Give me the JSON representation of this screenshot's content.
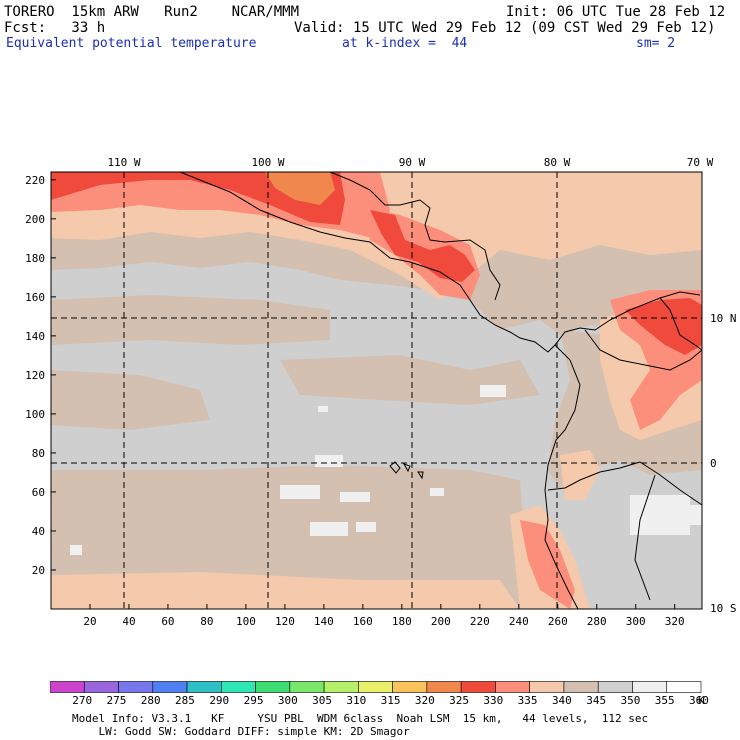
{
  "header": {
    "line1_left": "TORERO  15km ARW   Run2    NCAR/MMM",
    "line1_right": "Init: 06 UTC Tue 28 Feb 12",
    "line2_left": "Fcst:   33 h",
    "line2_right": "Valid: 15 UTC Wed 29 Feb 12 (09 CST Wed 29 Feb 12)",
    "line3_field": "Equivalent potential temperature",
    "line3_level": "at k-index =  44",
    "line3_sm": "sm= 2"
  },
  "map": {
    "top_ticks": [
      "110 W",
      "100 W",
      "90 W",
      "80 W",
      "70 W"
    ],
    "right_ticks": [
      "10 N",
      "0",
      "10 S"
    ],
    "x_ticks": [
      "20",
      "40",
      "60",
      "80",
      "100",
      "120",
      "140",
      "160",
      "180",
      "200",
      "220",
      "240",
      "260",
      "280",
      "300",
      "320"
    ],
    "y_ticks": [
      "20",
      "40",
      "60",
      "80",
      "100",
      "120",
      "140",
      "160",
      "180",
      "200",
      "220"
    ],
    "colors": {
      "c325": "#f0884e",
      "c330": "#f04a3c",
      "c335": "#fb8f7c",
      "c340": "#f5c9ab",
      "c345": "#d4c0b1",
      "c350": "#cfcfcf",
      "c355": "#f0f0f0",
      "coast": "#000000"
    }
  },
  "colorbar": {
    "labels": [
      "270",
      "275",
      "280",
      "285",
      "290",
      "295",
      "300",
      "305",
      "310",
      "315",
      "320",
      "325",
      "330",
      "335",
      "340",
      "345",
      "350",
      "355",
      "360"
    ],
    "unit": "K",
    "colors": [
      "#cc44cc",
      "#9966dd",
      "#7777ee",
      "#4f7ff0",
      "#2fbfc6",
      "#2ee7b5",
      "#3cdc73",
      "#7ce66b",
      "#b6ef6a",
      "#e9ef67",
      "#f9c25a",
      "#f0884e",
      "#f04a3c",
      "#fb8f7c",
      "#f5c9ab",
      "#d4c0b1",
      "#cfcfcf",
      "#f0f0f0",
      "#ffffff"
    ]
  },
  "footer": {
    "line1": "Model Info: V3.3.1   KF     YSU PBL  WDM 6class  Noah LSM  15 km,   44 levels,  112 sec",
    "line2": "    LW: Godd SW: Goddard DIFF: simple KM: 2D Smagor"
  }
}
